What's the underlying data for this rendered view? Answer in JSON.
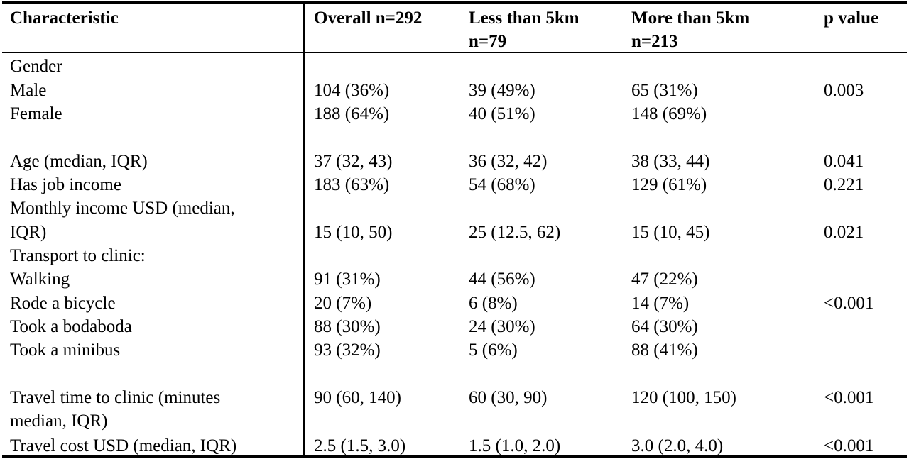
{
  "table": {
    "headers": {
      "characteristic": "Characteristic",
      "overall": "Overall n=292",
      "less_line1": "Less than 5km",
      "less_line2": "n=79",
      "more_line1": "More than 5km",
      "more_line2": "n=213",
      "pvalue": "p value"
    },
    "rows": {
      "gender": {
        "label": "Gender"
      },
      "male": {
        "label": "Male",
        "overall": "104 (36%)",
        "less": "39 (49%)",
        "more": "65 (31%)",
        "p": "0.003"
      },
      "female": {
        "label": "Female",
        "overall": "188 (64%)",
        "less": "40 (51%)",
        "more": "148 (69%)"
      },
      "age": {
        "label": "Age (median, IQR)",
        "overall": "37 (32, 43)",
        "less": "36 (32, 42)",
        "more": "38 (33, 44)",
        "p": "0.041"
      },
      "job": {
        "label": "Has job income",
        "overall": "183 (63%)",
        "less": "54 (68%)",
        "more": "129 (61%)",
        "p": "0.221"
      },
      "income": {
        "label_line1": "Monthly income USD (median,",
        "label_line2": "IQR)",
        "overall": "15 (10, 50)",
        "less": "25 (12.5, 62)",
        "more": "15 (10, 45)",
        "p": "0.021"
      },
      "transport": {
        "label": "Transport to clinic:"
      },
      "walking": {
        "label": "Walking",
        "overall": "91 (31%)",
        "less": "44 (56%)",
        "more": "47 (22%)"
      },
      "bicycle": {
        "label": "Rode a bicycle",
        "overall": "20 (7%)",
        "less": "6 (8%)",
        "more": "14 (7%)",
        "p": "<0.001"
      },
      "bodaboda": {
        "label": "Took a bodaboda",
        "overall": "88 (30%)",
        "less": "24 (30%)",
        "more": "64 (30%)"
      },
      "minibus": {
        "label": "Took a minibus",
        "overall": "93 (32%)",
        "less": "5 (6%)",
        "more": "88 (41%)"
      },
      "travel_time": {
        "label_line1": "Travel time to clinic (minutes",
        "label_line2": "median, IQR)",
        "overall": "90 (60, 140)",
        "less": "60 (30, 90)",
        "more": "120 (100, 150)",
        "p": "<0.001"
      },
      "travel_cost": {
        "label": "Travel cost USD (median, IQR)",
        "overall": "2.5 (1.5, 3.0)",
        "less": "1.5 (1.0, 2.0)",
        "more": "3.0 (2.0, 4.0)",
        "p": "<0.001"
      }
    }
  }
}
